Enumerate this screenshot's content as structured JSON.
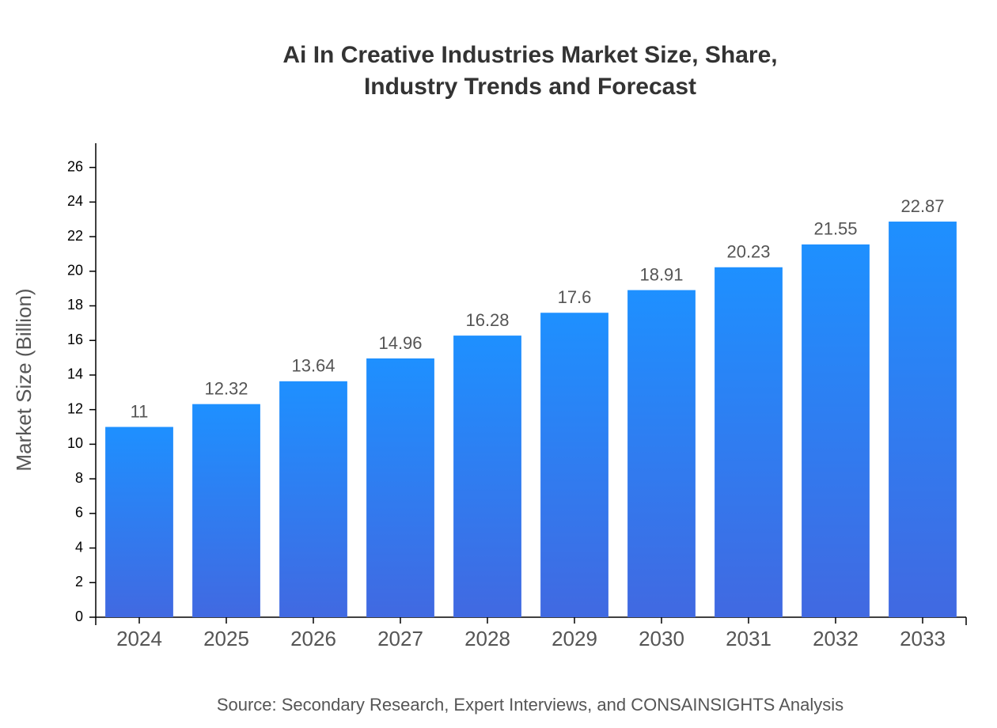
{
  "chart_data": {
    "type": "bar",
    "title": "Ai In Creative Industries Market Size, Share, Industry Trends and Forecast",
    "y_label": "Market Size (Billion)",
    "source": "Source: Secondary Research, Expert Interviews, and CONSAINSIGHTS Analysis",
    "categories": [
      "2024",
      "2025",
      "2026",
      "2027",
      "2028",
      "2029",
      "2030",
      "2031",
      "2032",
      "2033"
    ],
    "values": [
      11,
      12.32,
      13.64,
      14.96,
      16.28,
      17.6,
      18.91,
      20.23,
      21.55,
      22.87
    ],
    "gradient": [
      "#1e90ff",
      "#4169e1"
    ],
    "ylim": [
      0,
      27.4
    ],
    "yticks": [
      0,
      2,
      4,
      6,
      8,
      10,
      12,
      14,
      16,
      18,
      20,
      22,
      24,
      26
    ],
    "grid": false
  }
}
